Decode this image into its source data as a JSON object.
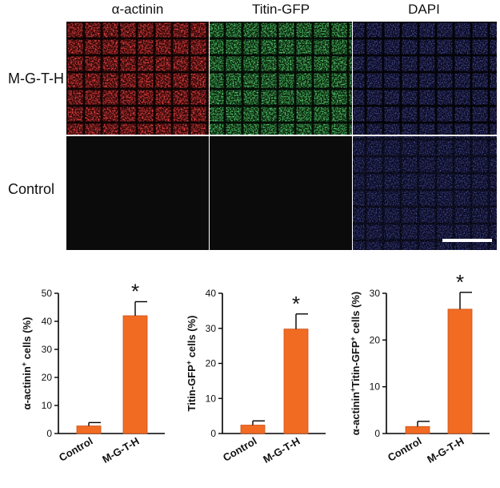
{
  "micrographs": {
    "columns": [
      "α-actinin",
      "Titin-GFP",
      "DAPI"
    ],
    "rows": [
      "M-G-T-H",
      "Control"
    ]
  },
  "colors": {
    "bar": "#f26b22",
    "red_stain": "#d81b1b",
    "green_stain": "#2aa336",
    "blue_stain": "#2733a6"
  },
  "chart_data": [
    {
      "type": "bar",
      "categories": [
        "Control",
        "M-G-T-H"
      ],
      "values": [
        2.7,
        42.0
      ],
      "errors": [
        1.2,
        5.0
      ],
      "ylabel_parts": [
        "α-actinin",
        "+",
        " cells (%)"
      ],
      "ylim": [
        0,
        50
      ],
      "yticks": [
        "0",
        "10",
        "20",
        "30",
        "40",
        "50"
      ],
      "significance": "*"
    },
    {
      "type": "bar",
      "categories": [
        "Control",
        "M-G-T-H"
      ],
      "values": [
        2.4,
        29.8
      ],
      "errors": [
        1.2,
        4.3
      ],
      "ylabel_parts": [
        "Titin-GFP",
        "+",
        " cells (%)"
      ],
      "ylim": [
        0,
        40
      ],
      "yticks": [
        "0",
        "10",
        "20",
        "30",
        "40"
      ],
      "significance": "*"
    },
    {
      "type": "bar",
      "categories": [
        "Control",
        "M-G-T-H"
      ],
      "values": [
        1.5,
        26.6
      ],
      "errors": [
        1.1,
        3.6
      ],
      "ylabel_parts": [
        "α-actinin",
        "+",
        "Titin-GFP",
        "+",
        " cells (%)"
      ],
      "ylim": [
        0,
        30
      ],
      "yticks": [
        "0",
        "10",
        "20",
        "30"
      ],
      "significance": "*"
    }
  ]
}
